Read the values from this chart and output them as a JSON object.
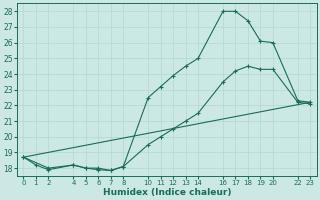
{
  "xlabel": "Humidex (Indice chaleur)",
  "bg_color": "#cce8e4",
  "grid_color": "#b0d8d0",
  "line_color": "#1a6b5a",
  "xlim": [
    -0.5,
    23.5
  ],
  "ylim": [
    17.5,
    28.5
  ],
  "xticks": [
    0,
    1,
    2,
    4,
    5,
    6,
    7,
    8,
    10,
    11,
    12,
    13,
    14,
    16,
    17,
    18,
    19,
    20,
    22,
    23
  ],
  "yticks": [
    18,
    19,
    20,
    21,
    22,
    23,
    24,
    25,
    26,
    27,
    28
  ],
  "line1_x": [
    0,
    1,
    2,
    4,
    5,
    6,
    7,
    8,
    10,
    11,
    12,
    13,
    14,
    16,
    17,
    18,
    19,
    20,
    22,
    23
  ],
  "line1_y": [
    18.7,
    18.2,
    17.9,
    18.2,
    18.0,
    17.9,
    17.85,
    18.1,
    22.5,
    23.2,
    23.9,
    24.5,
    25.0,
    28.0,
    28.0,
    27.4,
    26.1,
    26.0,
    22.3,
    22.2
  ],
  "line2_x": [
    0,
    2,
    4,
    5,
    6,
    7,
    8,
    10,
    11,
    12,
    13,
    14,
    16,
    17,
    18,
    19,
    20,
    22,
    23
  ],
  "line2_y": [
    18.7,
    18.0,
    18.2,
    18.0,
    18.0,
    17.85,
    18.1,
    19.5,
    20.0,
    20.5,
    21.0,
    21.5,
    23.5,
    24.2,
    24.5,
    24.3,
    24.3,
    22.2,
    22.1
  ],
  "line3_x": [
    0,
    23
  ],
  "line3_y": [
    18.7,
    22.2
  ]
}
